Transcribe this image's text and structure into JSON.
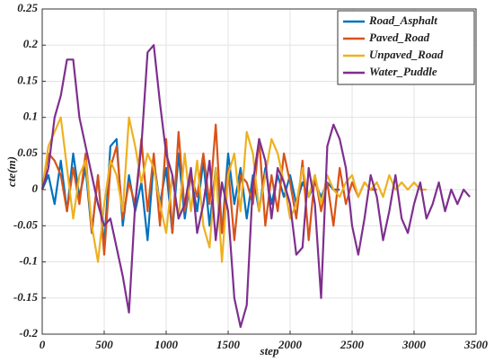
{
  "chart_data": {
    "type": "line",
    "xlabel": "step",
    "ylabel": "cte(m)",
    "x": [
      0,
      50,
      100,
      150,
      200,
      250,
      300,
      350,
      400,
      450,
      500,
      550,
      600,
      650,
      700,
      750,
      800,
      850,
      900,
      950,
      1000,
      1050,
      1100,
      1150,
      1200,
      1250,
      1300,
      1350,
      1400,
      1450,
      1500,
      1550,
      1600,
      1650,
      1700,
      1750,
      1800,
      1850,
      1900,
      1950,
      2000,
      2050,
      2100,
      2150,
      2200,
      2250,
      2300,
      2350,
      2400,
      2450,
      2500,
      2550,
      2600,
      2650,
      2700,
      2750,
      2800,
      2850,
      2900,
      2950,
      3000,
      3050,
      3100,
      3150,
      3200,
      3250,
      3300,
      3350,
      3400,
      3450
    ],
    "series": [
      {
        "name": "Road_Asphalt",
        "color": "#0072BD",
        "values": [
          0,
          0.02,
          -0.02,
          0.04,
          -0.03,
          0.05,
          -0.01,
          0.03,
          -0.06,
          0.02,
          -0.08,
          0.06,
          0.07,
          -0.05,
          0.02,
          -0.03,
          0.01,
          -0.07,
          0.04,
          -0.02,
          0.03,
          -0.06,
          0.05,
          -0.04,
          0.02,
          -0.03,
          0.04,
          -0.05,
          0.03,
          -0.06,
          0.05,
          -0.02,
          0.03,
          -0.04,
          0.02,
          -0.03,
          0.03,
          -0.02,
          0.02,
          -0.01,
          0.02,
          -0.02,
          0.01,
          -0.01,
          0.01,
          -0.01,
          0.01,
          0,
          0,
          null,
          null,
          null,
          null,
          null,
          null,
          null,
          null,
          null,
          null,
          null,
          null,
          null,
          null,
          null,
          null,
          null,
          null,
          null,
          null,
          null
        ]
      },
      {
        "name": "Paved_Road",
        "color": "#D95319",
        "values": [
          0,
          0.05,
          0.04,
          0.02,
          -0.03,
          0.03,
          -0.02,
          0.05,
          -0.06,
          0.02,
          -0.09,
          0.03,
          0.06,
          -0.04,
          0.01,
          -0.02,
          0.07,
          -0.03,
          0.05,
          -0.05,
          0.07,
          -0.06,
          0.08,
          -0.03,
          0.02,
          -0.01,
          0.05,
          -0.02,
          0.09,
          -0.06,
          0.03,
          -0.07,
          0.02,
          0.01,
          -0.02,
          0.07,
          -0.05,
          0.02,
          -0.03,
          0.05,
          0.01,
          -0.04,
          0.04,
          -0.07,
          0.02,
          -0.03,
          0.01,
          -0.05,
          0.03,
          -0.02,
          0.01,
          -0.01,
          0.01,
          0,
          0,
          null,
          null,
          null,
          null,
          null,
          null,
          null,
          null,
          null,
          null,
          null,
          null,
          null,
          null,
          null
        ]
      },
      {
        "name": "Unpaved_Road",
        "color": "#EDB120",
        "values": [
          0,
          0.06,
          0.08,
          0.1,
          0.03,
          -0.04,
          0.02,
          0.04,
          -0.05,
          -0.1,
          -0.02,
          0.04,
          0.02,
          -0.03,
          0.1,
          0.06,
          0.01,
          0.05,
          0.03,
          -0.02,
          -0.06,
          0.02,
          -0.04,
          0.05,
          -0.03,
          0.04,
          -0.05,
          -0.08,
          0.03,
          -0.1,
          0.02,
          0.05,
          -0.03,
          0.08,
          0.05,
          -0.03,
          0.02,
          0.07,
          0.05,
          0.01,
          -0.04,
          -0.02,
          0.03,
          -0.01,
          0.02,
          -0.02,
          0.02,
          0,
          -0.01,
          0.01,
          0.02,
          -0.01,
          0.01,
          0,
          0.01,
          -0.01,
          0.02,
          0,
          0.01,
          0,
          0.01,
          0,
          0,
          null,
          null,
          null,
          null,
          null,
          null,
          null
        ]
      },
      {
        "name": "Water_Puddle",
        "color": "#7E2F8E",
        "values": [
          0,
          0.03,
          0.1,
          0.13,
          0.18,
          0.18,
          0.1,
          0.06,
          0.02,
          -0.02,
          -0.05,
          -0.04,
          -0.08,
          -0.12,
          -0.17,
          -0.02,
          0.06,
          0.19,
          0.2,
          0.12,
          0.05,
          0.02,
          -0.04,
          -0.02,
          0.03,
          -0.06,
          -0.02,
          0.04,
          -0.07,
          0.01,
          -0.03,
          -0.15,
          -0.19,
          -0.16,
          0.01,
          0.07,
          0.04,
          -0.04,
          0.03,
          0.01,
          -0.02,
          -0.09,
          -0.08,
          0.03,
          -0.02,
          -0.15,
          0.06,
          0.09,
          0.07,
          0.03,
          -0.05,
          -0.09,
          -0.04,
          0.02,
          -0.01,
          -0.07,
          -0.03,
          0.02,
          -0.04,
          -0.06,
          -0.02,
          0.01,
          -0.04,
          -0.02,
          0.01,
          -0.03,
          0,
          -0.02,
          0,
          -0.01
        ]
      }
    ],
    "xlim": [
      0,
      3500
    ],
    "xticks": [
      0,
      500,
      1000,
      1500,
      2000,
      2500,
      3000,
      3500
    ],
    "ylim": [
      -0.2,
      0.25
    ],
    "yticks": [
      -0.2,
      -0.15,
      -0.1,
      -0.05,
      0,
      0.05,
      0.1,
      0.15,
      0.2,
      0.25
    ],
    "grid": true,
    "legend": "upper right"
  }
}
